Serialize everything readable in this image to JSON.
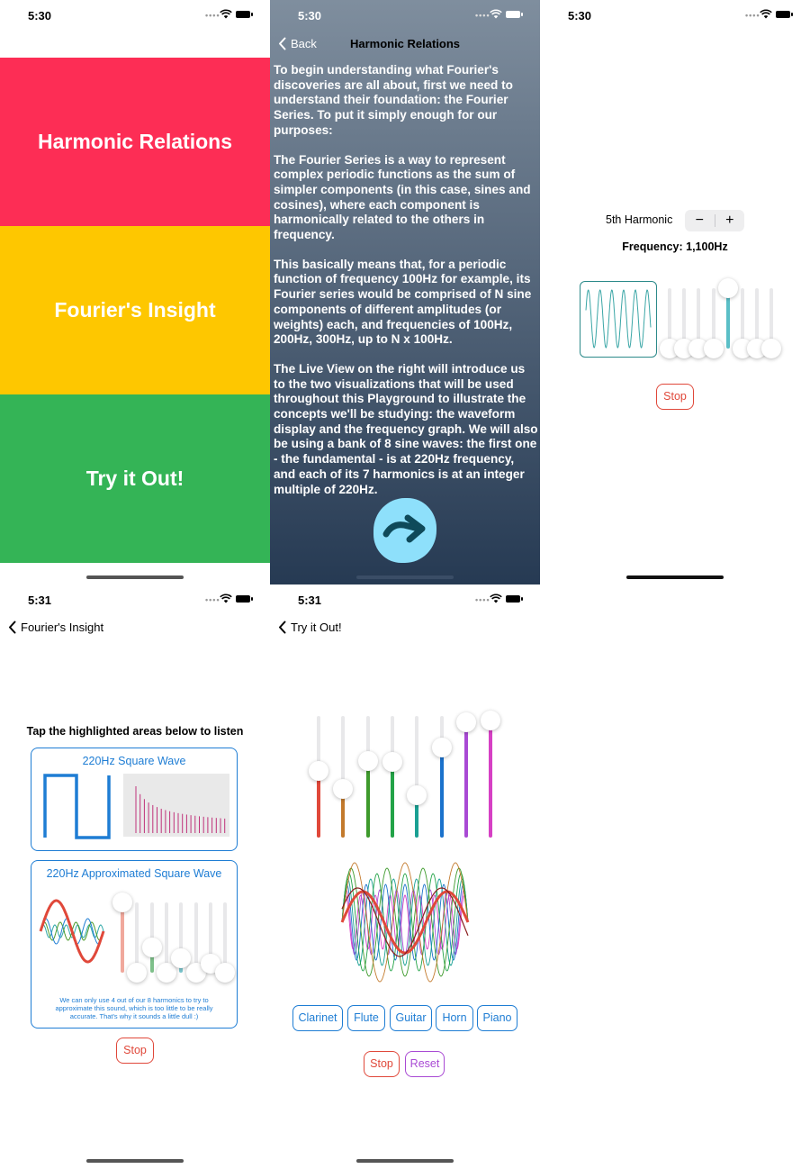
{
  "status": {
    "time_a": "5:30",
    "time_b": "5:31"
  },
  "home_menu": {
    "items": [
      {
        "label": "Harmonic Relations",
        "color": "#fd2d55"
      },
      {
        "label": "Fourier's Insight",
        "color": "#fec700"
      },
      {
        "label": "Try it Out!",
        "color": "#34b456"
      }
    ]
  },
  "lesson": {
    "back_label": "Back",
    "title": "Harmonic Relations",
    "paragraphs": [
      "To begin understanding what Fourier's discoveries are all about, first we need to understand their foundation: the Fourier Series. To put it simply enough for our purposes:",
      "The Fourier Series is a way to represent complex periodic functions as the sum of simpler components (in this case, sines and cosines), where each component is harmonically related to the others in frequency.",
      "This basically means that, for a periodic function of frequency 100Hz for example, its Fourier series would be comprised of N sine components of different amplitudes (or weights) each, and frequencies of 100Hz, 200Hz, 300Hz, up to N x 100Hz.",
      "The Live View on the right will introduce us to the two visualizations that will be used throughout this Playground to illustrate the concepts we'll be studying: the waveform display and the frequency graph. We will also be using a bank of 8 sine waves: the first one - the fundamental - is at 220Hz frequency, and each of its 7 harmonics is at an integer multiple of 220Hz."
    ],
    "next_button_icon": "arrow-right-icon"
  },
  "harmonic_view": {
    "harmonic_label": "5th Harmonic",
    "minus": "−",
    "plus": "+",
    "frequency": "Frequency: 1,100Hz",
    "stop_label": "Stop",
    "slider_levels": [
      0,
      0,
      0,
      0,
      1,
      0,
      0,
      0
    ]
  },
  "fourier_insight": {
    "back_label": "Fourier's Insight",
    "instruction": "Tap the highlighted areas below to listen",
    "card1_title": "220Hz Square Wave",
    "card2_title": "220Hz Approximated Square Wave",
    "note": "We can only use 4 out of our 8 harmonics to try to approximate this sound, which is too little to be really accurate. That's why it sounds a little dull :)",
    "stop_label": "Stop",
    "slider_levels": [
      1,
      0,
      0.36,
      0,
      0.2,
      0,
      0.13,
      0
    ]
  },
  "try_it_out": {
    "back_label": "Try it Out!",
    "slider_levels": [
      0.55,
      0.4,
      0.63,
      0.62,
      0.35,
      0.74,
      0.95,
      0.96
    ],
    "slider_colors": [
      "#e0483a",
      "#c37a2c",
      "#3e9a2c",
      "#23a347",
      "#1aa093",
      "#1b72cc",
      "#a94ad4",
      "#d640c4"
    ],
    "instruments": [
      "Clarinet",
      "Flute",
      "Guitar",
      "Horn",
      "Piano"
    ],
    "stop_label": "Stop",
    "reset_label": "Reset"
  },
  "colors": {
    "accent_blue": "#1e7dd4",
    "stop_red": "#e0483a",
    "reset_purple": "#a94ad4",
    "teal": "#2c8a8a"
  }
}
